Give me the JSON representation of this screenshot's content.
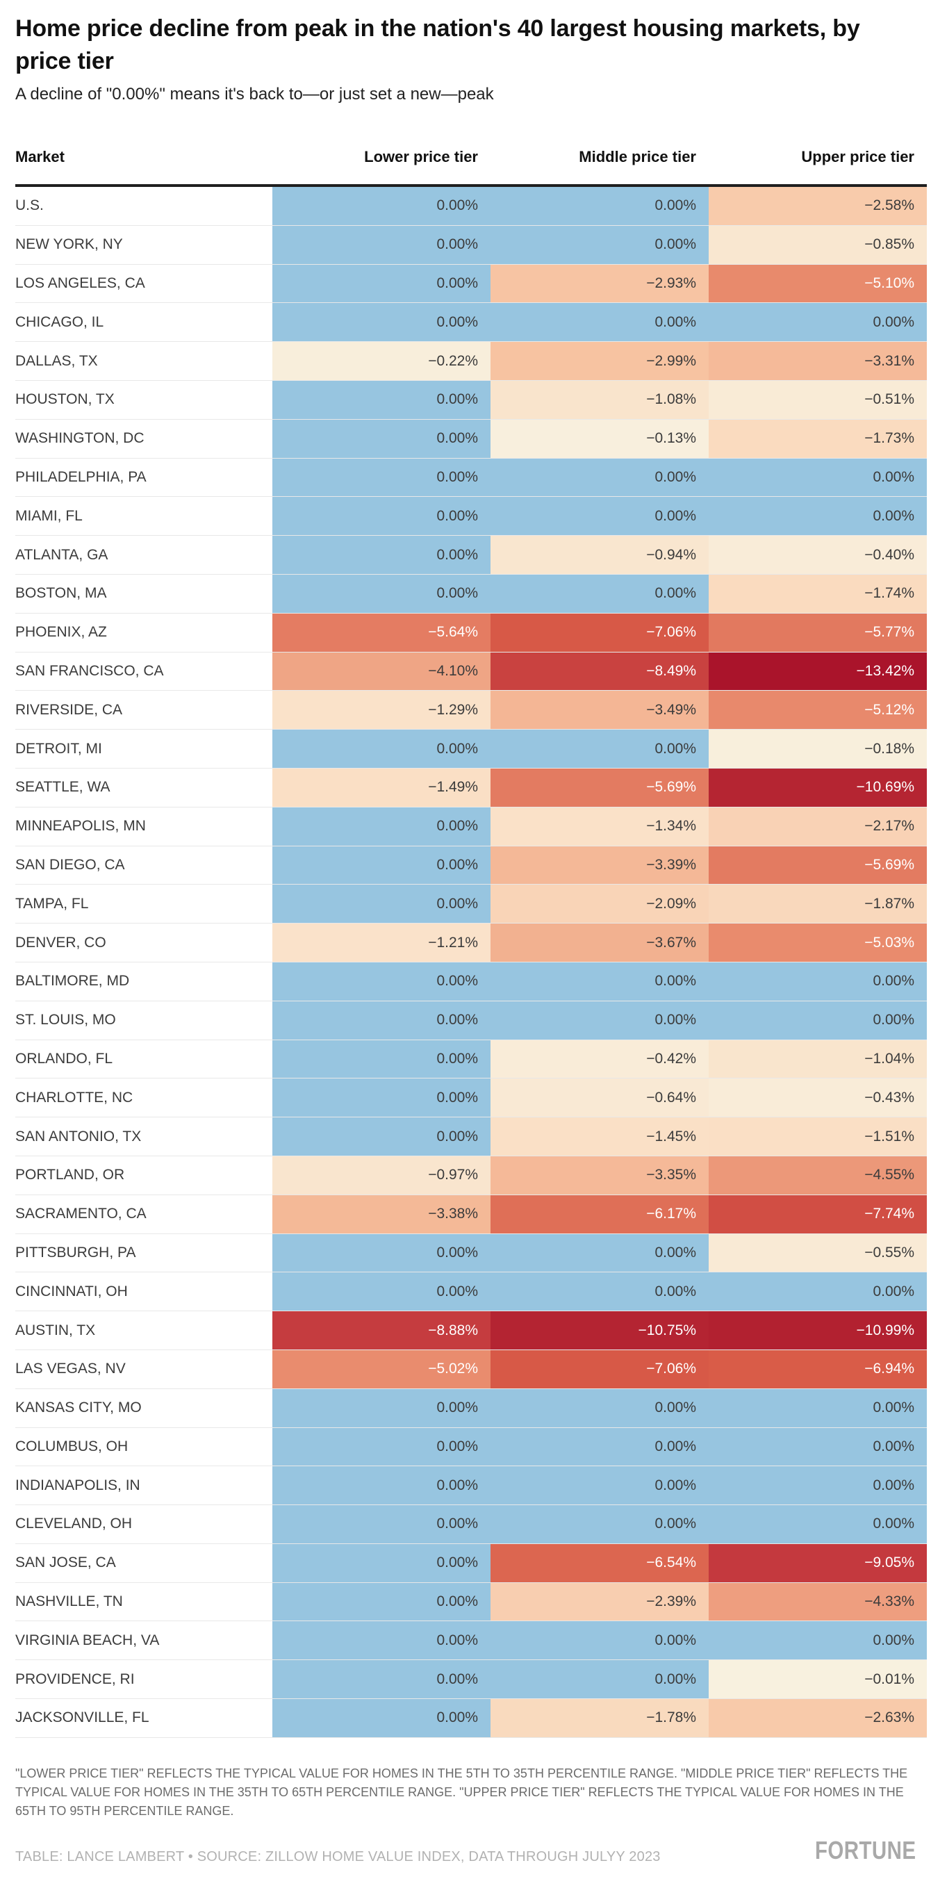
{
  "header": {
    "title": "Home price decline from peak in the nation's 40 largest housing markets, by price tier",
    "subtitle": "A decline of \"0.00%\" means it's back to—or just set a new—peak"
  },
  "table": {
    "market_header": "Market",
    "tier_headers": [
      "Lower price tier",
      "Middle price tier",
      "Upper price tier"
    ],
    "rows": [
      {
        "market": "U.S.",
        "lower": "0.00%",
        "middle": "0.00%",
        "upper": "−2.58%"
      },
      {
        "market": "NEW YORK, NY",
        "lower": "0.00%",
        "middle": "0.00%",
        "upper": "−0.85%"
      },
      {
        "market": "LOS ANGELES, CA",
        "lower": "0.00%",
        "middle": "−2.93%",
        "upper": "−5.10%"
      },
      {
        "market": "CHICAGO, IL",
        "lower": "0.00%",
        "middle": "0.00%",
        "upper": "0.00%"
      },
      {
        "market": "DALLAS, TX",
        "lower": "−0.22%",
        "middle": "−2.99%",
        "upper": "−3.31%"
      },
      {
        "market": "HOUSTON, TX",
        "lower": "0.00%",
        "middle": "−1.08%",
        "upper": "−0.51%"
      },
      {
        "market": "WASHINGTON, DC",
        "lower": "0.00%",
        "middle": "−0.13%",
        "upper": "−1.73%"
      },
      {
        "market": "PHILADELPHIA, PA",
        "lower": "0.00%",
        "middle": "0.00%",
        "upper": "0.00%"
      },
      {
        "market": "MIAMI, FL",
        "lower": "0.00%",
        "middle": "0.00%",
        "upper": "0.00%"
      },
      {
        "market": "ATLANTA, GA",
        "lower": "0.00%",
        "middle": "−0.94%",
        "upper": "−0.40%"
      },
      {
        "market": "BOSTON, MA",
        "lower": "0.00%",
        "middle": "0.00%",
        "upper": "−1.74%"
      },
      {
        "market": "PHOENIX, AZ",
        "lower": "−5.64%",
        "middle": "−7.06%",
        "upper": "−5.77%"
      },
      {
        "market": "SAN FRANCISCO, CA",
        "lower": "−4.10%",
        "middle": "−8.49%",
        "upper": "−13.42%"
      },
      {
        "market": "RIVERSIDE, CA",
        "lower": "−1.29%",
        "middle": "−3.49%",
        "upper": "−5.12%"
      },
      {
        "market": "DETROIT, MI",
        "lower": "0.00%",
        "middle": "0.00%",
        "upper": "−0.18%"
      },
      {
        "market": "SEATTLE, WA",
        "lower": "−1.49%",
        "middle": "−5.69%",
        "upper": "−10.69%"
      },
      {
        "market": "MINNEAPOLIS, MN",
        "lower": "0.00%",
        "middle": "−1.34%",
        "upper": "−2.17%"
      },
      {
        "market": "SAN DIEGO, CA",
        "lower": "0.00%",
        "middle": "−3.39%",
        "upper": "−5.69%"
      },
      {
        "market": "TAMPA, FL",
        "lower": "0.00%",
        "middle": "−2.09%",
        "upper": "−1.87%"
      },
      {
        "market": "DENVER, CO",
        "lower": "−1.21%",
        "middle": "−3.67%",
        "upper": "−5.03%"
      },
      {
        "market": "BALTIMORE, MD",
        "lower": "0.00%",
        "middle": "0.00%",
        "upper": "0.00%"
      },
      {
        "market": "ST. LOUIS, MO",
        "lower": "0.00%",
        "middle": "0.00%",
        "upper": "0.00%"
      },
      {
        "market": "ORLANDO, FL",
        "lower": "0.00%",
        "middle": "−0.42%",
        "upper": "−1.04%"
      },
      {
        "market": "CHARLOTTE, NC",
        "lower": "0.00%",
        "middle": "−0.64%",
        "upper": "−0.43%"
      },
      {
        "market": "SAN ANTONIO, TX",
        "lower": "0.00%",
        "middle": "−1.45%",
        "upper": "−1.51%"
      },
      {
        "market": "PORTLAND, OR",
        "lower": "−0.97%",
        "middle": "−3.35%",
        "upper": "−4.55%"
      },
      {
        "market": "SACRAMENTO, CA",
        "lower": "−3.38%",
        "middle": "−6.17%",
        "upper": "−7.74%"
      },
      {
        "market": "PITTSBURGH, PA",
        "lower": "0.00%",
        "middle": "0.00%",
        "upper": "−0.55%"
      },
      {
        "market": "CINCINNATI, OH",
        "lower": "0.00%",
        "middle": "0.00%",
        "upper": "0.00%"
      },
      {
        "market": "AUSTIN, TX",
        "lower": "−8.88%",
        "middle": "−10.75%",
        "upper": "−10.99%"
      },
      {
        "market": "LAS VEGAS, NV",
        "lower": "−5.02%",
        "middle": "−7.06%",
        "upper": "−6.94%"
      },
      {
        "market": "KANSAS CITY, MO",
        "lower": "0.00%",
        "middle": "0.00%",
        "upper": "0.00%"
      },
      {
        "market": "COLUMBUS, OH",
        "lower": "0.00%",
        "middle": "0.00%",
        "upper": "0.00%"
      },
      {
        "market": "INDIANAPOLIS, IN",
        "lower": "0.00%",
        "middle": "0.00%",
        "upper": "0.00%"
      },
      {
        "market": "CLEVELAND, OH",
        "lower": "0.00%",
        "middle": "0.00%",
        "upper": "0.00%"
      },
      {
        "market": "SAN JOSE, CA",
        "lower": "0.00%",
        "middle": "−6.54%",
        "upper": "−9.05%"
      },
      {
        "market": "NASHVILLE, TN",
        "lower": "0.00%",
        "middle": "−2.39%",
        "upper": "−4.33%"
      },
      {
        "market": "VIRGINIA BEACH, VA",
        "lower": "0.00%",
        "middle": "0.00%",
        "upper": "0.00%"
      },
      {
        "market": "PROVIDENCE, RI",
        "lower": "0.00%",
        "middle": "0.00%",
        "upper": "−0.01%"
      },
      {
        "market": "JACKSONVILLE, FL",
        "lower": "0.00%",
        "middle": "−1.78%",
        "upper": "−2.63%"
      }
    ]
  },
  "scale": {
    "zero_color": "#97c5e0",
    "white_text_at_or_below": -5,
    "negative_stops": [
      {
        "v": 0,
        "c": "#f8f1df"
      },
      {
        "v": -1.5,
        "c": "#fadfc5"
      },
      {
        "v": -3,
        "c": "#f7c3a1"
      },
      {
        "v": -5,
        "c": "#e98c6e"
      },
      {
        "v": -7,
        "c": "#d85a47"
      },
      {
        "v": -9,
        "c": "#c43a3e"
      },
      {
        "v": -11,
        "c": "#b22130"
      },
      {
        "v": -13.5,
        "c": "#aa142b"
      }
    ]
  },
  "footer": {
    "note": "\"Lower price tier\" reflects the typical value for homes in the 5th to 35th percentile range. \"Middle price tier\" reflects the typical value for homes in the 35th to 65th percentile range. \"Upper price tier\" reflects the typical value for homes in the 65th to 95th percentile range.",
    "credit": "Table: Lance Lambert • Source: Zillow Home Value Index, data through Julyy 2023",
    "logo": "FORTUNE"
  },
  "chart_data": {
    "type": "heatmap",
    "title": "Home price decline from peak in the nation's 40 largest housing markets, by price tier",
    "subtitle": "A decline of \"0.00%\" means it's back to—or just set a new—peak",
    "categories": [
      "U.S.",
      "NEW YORK, NY",
      "LOS ANGELES, CA",
      "CHICAGO, IL",
      "DALLAS, TX",
      "HOUSTON, TX",
      "WASHINGTON, DC",
      "PHILADELPHIA, PA",
      "MIAMI, FL",
      "ATLANTA, GA",
      "BOSTON, MA",
      "PHOENIX, AZ",
      "SAN FRANCISCO, CA",
      "RIVERSIDE, CA",
      "DETROIT, MI",
      "SEATTLE, WA",
      "MINNEAPOLIS, MN",
      "SAN DIEGO, CA",
      "TAMPA, FL",
      "DENVER, CO",
      "BALTIMORE, MD",
      "ST. LOUIS, MO",
      "ORLANDO, FL",
      "CHARLOTTE, NC",
      "SAN ANTONIO, TX",
      "PORTLAND, OR",
      "SACRAMENTO, CA",
      "PITTSBURGH, PA",
      "CINCINNATI, OH",
      "AUSTIN, TX",
      "LAS VEGAS, NV",
      "KANSAS CITY, MO",
      "COLUMBUS, OH",
      "INDIANAPOLIS, IN",
      "CLEVELAND, OH",
      "SAN JOSE, CA",
      "NASHVILLE, TN",
      "VIRGINIA BEACH, VA",
      "PROVIDENCE, RI",
      "JACKSONVILLE, FL"
    ],
    "series": [
      {
        "name": "Lower price tier",
        "values": [
          0,
          0,
          0,
          0,
          -0.22,
          0,
          0,
          0,
          0,
          0,
          0,
          -5.64,
          -4.1,
          -1.29,
          0,
          -1.49,
          0,
          0,
          0,
          -1.21,
          0,
          0,
          0,
          0,
          0,
          -0.97,
          -3.38,
          0,
          0,
          -8.88,
          -5.02,
          0,
          0,
          0,
          0,
          0,
          0,
          0,
          0,
          0
        ]
      },
      {
        "name": "Middle price tier",
        "values": [
          0,
          0,
          -2.93,
          0,
          -2.99,
          -1.08,
          -0.13,
          0,
          0,
          -0.94,
          0,
          -7.06,
          -8.49,
          -3.49,
          0,
          -5.69,
          -1.34,
          -3.39,
          -2.09,
          -3.67,
          0,
          0,
          -0.42,
          -0.64,
          -1.45,
          -3.35,
          -6.17,
          0,
          0,
          -10.75,
          -7.06,
          0,
          0,
          0,
          0,
          -6.54,
          -2.39,
          0,
          0,
          -1.78
        ]
      },
      {
        "name": "Upper price tier",
        "values": [
          -2.58,
          -0.85,
          -5.1,
          0,
          -3.31,
          -0.51,
          -1.73,
          0,
          0,
          -0.4,
          -1.74,
          -5.77,
          -13.42,
          -5.12,
          -0.18,
          -10.69,
          -2.17,
          -5.69,
          -1.87,
          -5.03,
          0,
          0,
          -1.04,
          -0.43,
          -1.51,
          -4.55,
          -7.74,
          -0.55,
          0,
          -10.99,
          -6.94,
          0,
          0,
          0,
          0,
          -9.05,
          -4.33,
          0,
          -0.01,
          -2.63
        ]
      }
    ],
    "value_unit": "%",
    "legend_position": "none",
    "grid": "off"
  }
}
